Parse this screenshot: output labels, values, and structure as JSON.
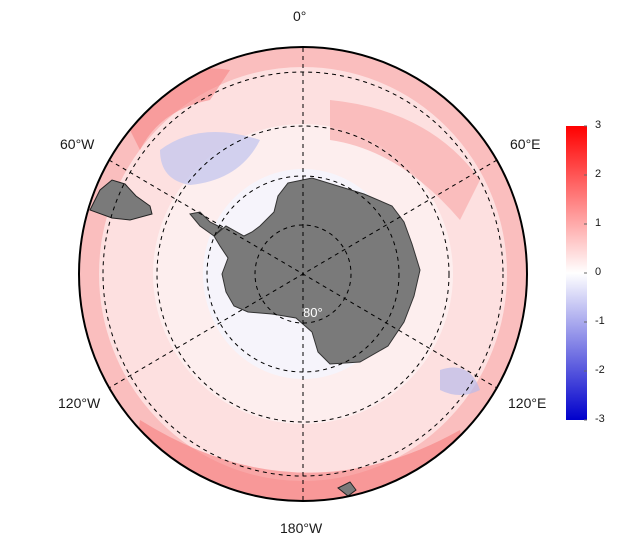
{
  "map": {
    "longitude_labels": {
      "top": "0°",
      "upper_left": "60°W",
      "upper_right": "60°E",
      "lower_left": "120°W",
      "lower_right": "120°E",
      "bottom": "180°W"
    },
    "latitude_label": "80°",
    "land_color": "#7a7a7a",
    "graticule_color": "#000000"
  },
  "colorbar": {
    "min": -3,
    "max": 3,
    "ticks": [
      "3",
      "2",
      "1",
      "0",
      "-1",
      "-2",
      "-3"
    ],
    "colors": {
      "low": "#0000cc",
      "mid": "#ffffff",
      "high": "#ff0000"
    }
  }
}
